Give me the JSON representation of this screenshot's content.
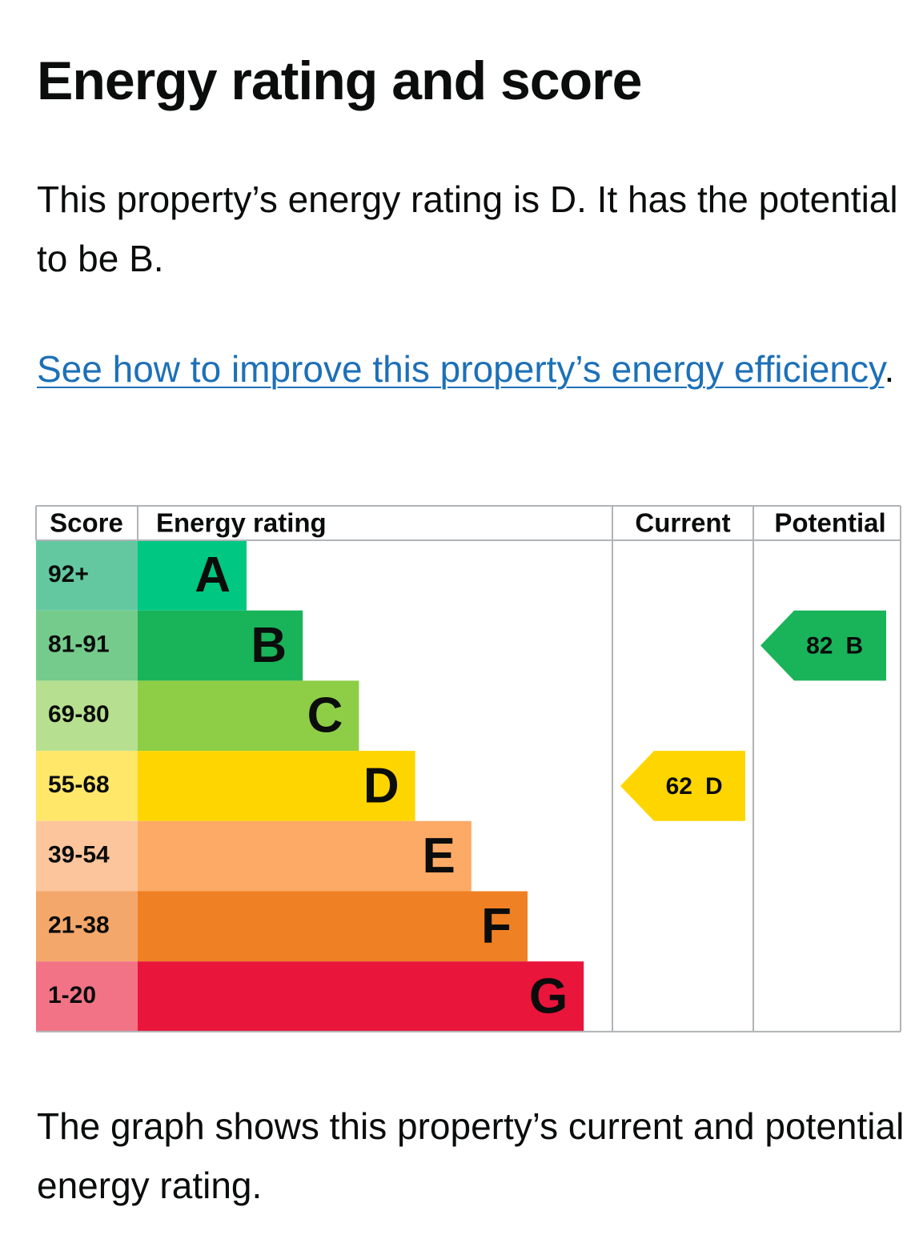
{
  "heading": "Energy rating and score",
  "summary": "This property’s energy rating is D. It has the potential to be B.",
  "link": {
    "text": "See how to improve this property’s energy efficiency",
    "suffix": "."
  },
  "graph": {
    "headers": [
      "Score",
      "Energy rating",
      "Current",
      "Potential"
    ],
    "bands": [
      {
        "score": "92+",
        "letter": "A",
        "color": "#00c781",
        "score_color": "#63c8a0"
      },
      {
        "score": "81-91",
        "letter": "B",
        "color": "#19b459",
        "score_color": "#75cb8b"
      },
      {
        "score": "69-80",
        "letter": "C",
        "color": "#8dce46",
        "score_color": "#b6e08f"
      },
      {
        "score": "55-68",
        "letter": "D",
        "color": "#ffd500",
        "score_color": "#ffe76a"
      },
      {
        "score": "39-54",
        "letter": "E",
        "color": "#fcaa65",
        "score_color": "#fdc59c"
      },
      {
        "score": "21-38",
        "letter": "F",
        "color": "#ef8023",
        "score_color": "#f4a76b"
      },
      {
        "score": "1-20",
        "letter": "G",
        "color": "#e9153b",
        "score_color": "#f27386"
      }
    ],
    "current": {
      "score": 62,
      "letter": "D"
    },
    "potential": {
      "score": 82,
      "letter": "B"
    }
  },
  "footer": "The graph shows this property’s current and potential energy rating."
}
